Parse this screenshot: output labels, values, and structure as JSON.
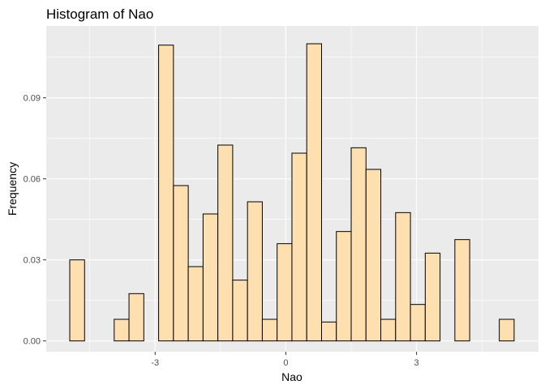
{
  "chart_data": {
    "type": "bar",
    "title": "Histogram of Nao",
    "xlabel": "Nao",
    "ylabel": "Frequency",
    "xlim": [
      -5.5,
      5.8
    ],
    "ylim": [
      -0.004,
      0.1166
    ],
    "x_ticks": [
      -3,
      0,
      3
    ],
    "x_tick_labels": [
      "-3",
      "0",
      "3"
    ],
    "y_ticks": [
      0,
      0.03,
      0.06,
      0.09
    ],
    "y_tick_labels": [
      "0.00",
      "0.03",
      "0.06",
      "0.09"
    ],
    "grid": true,
    "bin_width": 0.34,
    "bin_start": -4.96,
    "values": [
      0.03,
      0.0,
      0.0,
      0.008,
      0.0175,
      0.0,
      0.1095,
      0.0575,
      0.0275,
      0.047,
      0.0725,
      0.0225,
      0.0515,
      0.008,
      0.036,
      0.0695,
      0.11,
      0.007,
      0.0405,
      0.0715,
      0.0635,
      0.008,
      0.0475,
      0.0135,
      0.0325,
      0.0,
      0.0375,
      0.0,
      0.0,
      0.008
    ],
    "colors": {
      "fill": "#fee0b0",
      "stroke": "#000000",
      "panel": "#ebebeb",
      "grid": "#ffffff"
    }
  }
}
